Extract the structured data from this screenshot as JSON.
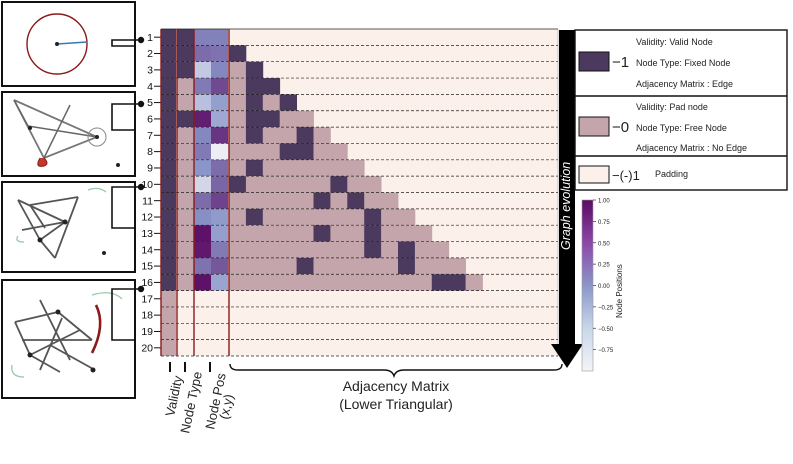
{
  "colors": {
    "edge_dark": "#4b3a5e",
    "pad_mauve": "#c4a5ab",
    "padding_bg": "#fbf1ea",
    "red_line": "#8b1a1a",
    "cmap_low": "#f2f2f7",
    "cmap_mid": "#8a96c9",
    "cmap_high": "#5b0a63"
  },
  "row_labels": [
    "1",
    "2",
    "3",
    "4",
    "5",
    "6",
    "7",
    "8",
    "9",
    "10",
    "11",
    "12",
    "13",
    "14",
    "15",
    "16",
    "17",
    "18",
    "19",
    "20"
  ],
  "validity_col": [
    1,
    1,
    1,
    1,
    1,
    1,
    1,
    1,
    1,
    1,
    1,
    1,
    1,
    1,
    1,
    1,
    0,
    0,
    0,
    0
  ],
  "node_type_col": [
    1,
    1,
    1,
    0,
    0,
    1,
    0,
    0,
    0,
    0,
    0,
    0,
    0,
    0,
    0,
    0,
    -1,
    -1,
    -1,
    -1
  ],
  "node_pos_values": [
    [
      0.15,
      0.15
    ],
    [
      0.3,
      0.25
    ],
    [
      -0.55,
      0.1
    ],
    [
      0.2,
      0.55
    ],
    [
      -0.45,
      -0.1
    ],
    [
      0.85,
      -0.2
    ],
    [
      0.1,
      0.7
    ],
    [
      0.2,
      -0.95
    ],
    [
      0.0,
      0.3
    ],
    [
      -0.7,
      0.35
    ],
    [
      0.3,
      0.6
    ],
    [
      0.05,
      -0.05
    ],
    [
      0.95,
      -0.1
    ],
    [
      0.9,
      0.2
    ],
    [
      0.25,
      0.45
    ],
    [
      0.95,
      -0.15
    ]
  ],
  "adjacency_edges": [
    [
      2,
      1
    ],
    [
      3,
      2
    ],
    [
      4,
      2
    ],
    [
      4,
      3
    ],
    [
      5,
      2
    ],
    [
      5,
      4
    ],
    [
      6,
      2
    ],
    [
      6,
      3
    ],
    [
      7,
      2
    ],
    [
      7,
      5
    ],
    [
      8,
      4
    ],
    [
      8,
      5
    ],
    [
      9,
      2
    ],
    [
      10,
      1
    ],
    [
      10,
      7
    ],
    [
      11,
      6
    ],
    [
      11,
      8
    ],
    [
      12,
      2
    ],
    [
      12,
      9
    ],
    [
      13,
      6
    ],
    [
      13,
      9
    ],
    [
      14,
      9
    ],
    [
      14,
      11
    ],
    [
      15,
      5
    ],
    [
      15,
      11
    ],
    [
      16,
      13
    ],
    [
      16,
      14
    ]
  ],
  "labels": {
    "validity": "Validity",
    "node_type": "Node Type",
    "node_pos": "Node Pos",
    "node_pos_xy": "(x,y)",
    "adjacency_title": "Adjacency Matrix",
    "adjacency_sub": "(Lower Triangular)",
    "graph_evolution": "Graph evolution"
  },
  "legend": {
    "dark_value": "−1",
    "dark_lines": [
      "Validity: Valid Node",
      "Node Type: Fixed Node",
      "Adjacency Matrix : Edge"
    ],
    "mauve_value": "−0",
    "mauve_lines": [
      "Validity: Pad node",
      "Node Type: Free Node",
      "Adjacency Matrix : No Edge"
    ],
    "pad_value": "−(-)1",
    "pad_lines": [
      "Padding"
    ]
  },
  "colorbar": {
    "label": "Node Positions",
    "ticks": [
      "1.00",
      "0.75",
      "0.50",
      "0.25",
      "0.00",
      "−0.25",
      "−0.50",
      "−0.75"
    ],
    "range": [
      -1.0,
      1.0
    ]
  }
}
